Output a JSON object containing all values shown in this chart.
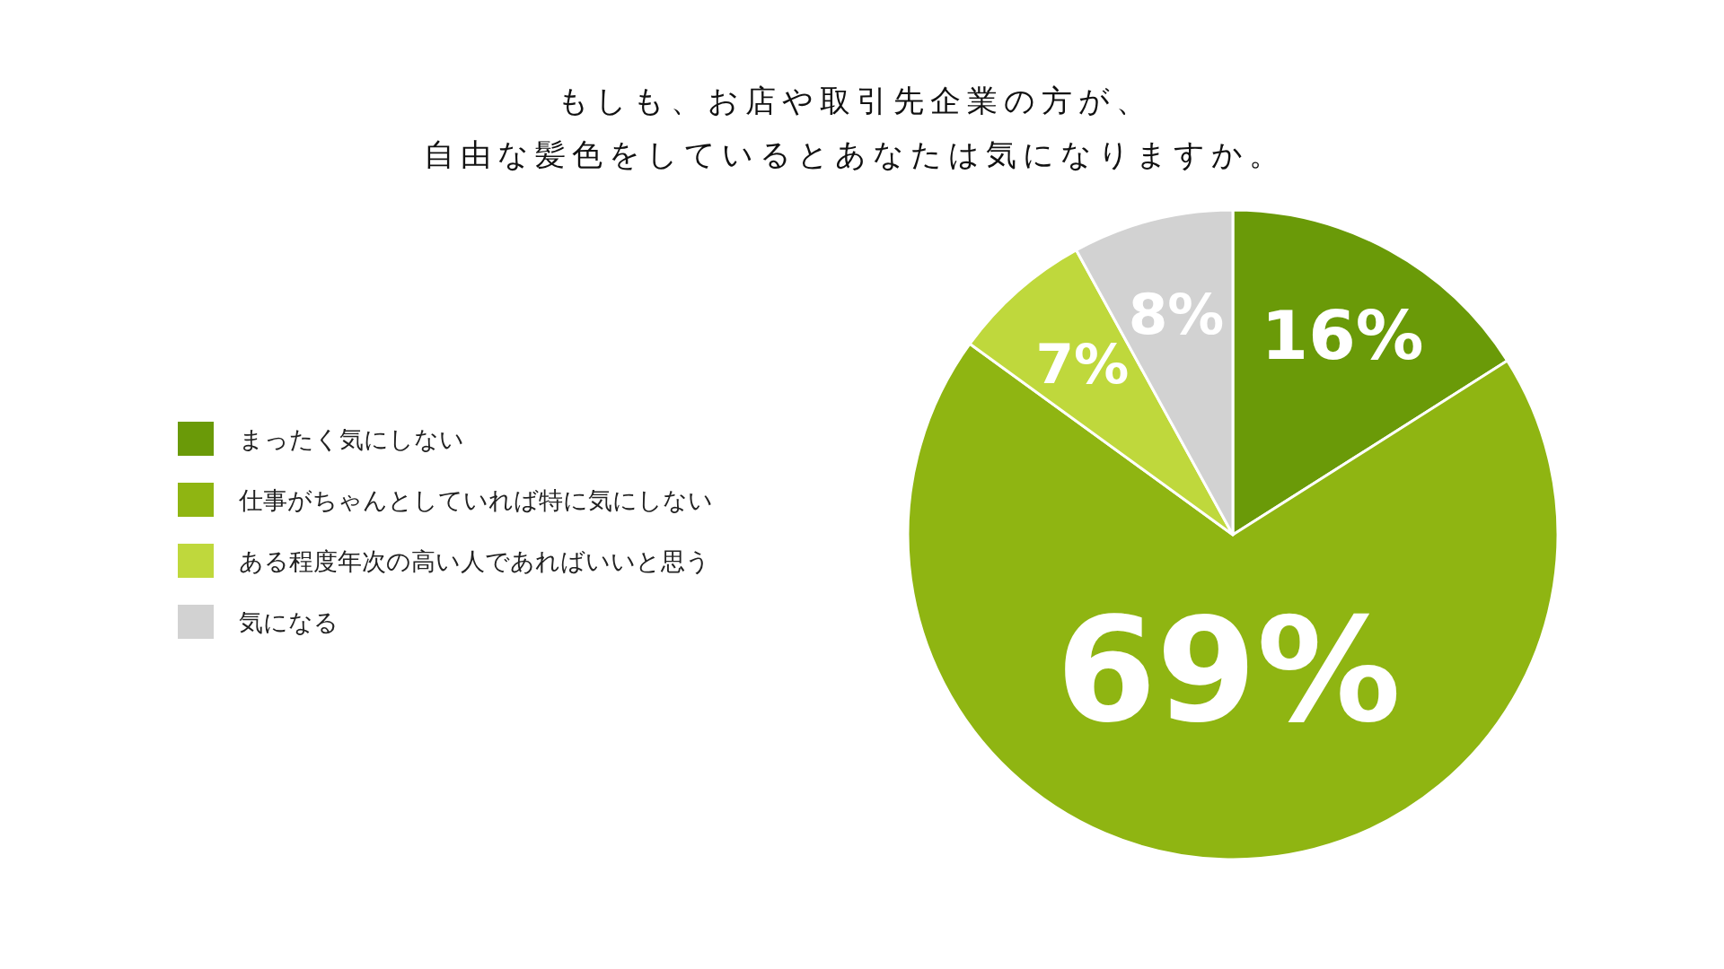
{
  "chart_data": {
    "type": "pie",
    "title": "もしも、お店や取引先企業の方が、",
    "subtitle": "自由な髪色をしているとあなたは気になりますか。",
    "categories": [
      "まったく気にしない",
      "仕事がちゃんとしていれば特に気にしない",
      "ある程度年次の高い人であればいいと思う",
      "気になる"
    ],
    "values": [
      16,
      69,
      7,
      8
    ],
    "colors": [
      "#6a9a08",
      "#8fb512",
      "#bfd83c",
      "#d2d2d2"
    ],
    "value_labels": [
      "16%",
      "69%",
      "7%",
      "8%"
    ],
    "legend": "left"
  }
}
